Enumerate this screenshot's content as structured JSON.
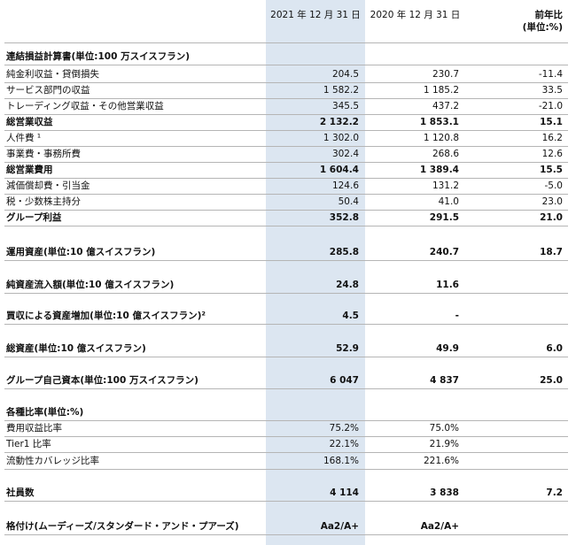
{
  "table": {
    "header": [
      "2021 年 12 月 31 日",
      "2020 年 12 月 31 日",
      "前年比"
    ],
    "header_unit": "(単位:%)",
    "rows": [
      {
        "label": "連結損益計算書(単位:100 万スイスフラン)",
        "bold": true
      },
      {
        "label": "純金利収益・貸倒損失",
        "cells": [
          "204.5",
          "230.7",
          "-11.4"
        ]
      },
      {
        "label": "サービス部門の収益",
        "cells": [
          "1 582.2",
          "1 185.2",
          "33.5"
        ]
      },
      {
        "label": "トレーディング収益・その他営業収益",
        "cells": [
          "345.5",
          "437.2",
          "-21.0"
        ]
      },
      {
        "label": "総営業収益",
        "bold": true,
        "cells": [
          "2 132.2",
          "1 853.1",
          "15.1"
        ]
      },
      {
        "label": "人件費 ¹",
        "cells": [
          "1 302.0",
          "1 120.8",
          "16.2"
        ]
      },
      {
        "label": "事業費・事務所費",
        "cells": [
          "302.4",
          "268.6",
          "12.6"
        ]
      },
      {
        "label": "総営業費用",
        "bold": true,
        "cells": [
          "1 604.4",
          "1 389.4",
          "15.5"
        ]
      },
      {
        "label": "減価償却費・引当金",
        "cells": [
          "124.6",
          "131.2",
          "-5.0"
        ]
      },
      {
        "label": "税・少数株主持分",
        "cells": [
          "50.4",
          "41.0",
          "23.0"
        ]
      },
      {
        "label": "グループ利益",
        "bold": true,
        "cells": [
          "352.8",
          "291.5",
          "21.0"
        ]
      },
      {
        "label": "運用資産(単位:10 億スイスフラン)",
        "bold": true,
        "cells": [
          "285.8",
          "240.7",
          "18.7"
        ]
      },
      {
        "label": "純資産流入額(単位:10 億スイスフラン)",
        "bold": true,
        "cells": [
          "24.8",
          "11.6"
        ]
      },
      {
        "label": "買収による資産増加(単位:10 億スイスフラン)²",
        "bold": true,
        "cells": [
          "4.5",
          "-"
        ]
      },
      {
        "label": "総資産(単位:10 億スイスフラン)",
        "bold": true,
        "cells": [
          "52.9",
          "49.9",
          "6.0"
        ]
      },
      {
        "label": "グループ自己資本(単位:100 万スイスフラン)",
        "bold": true,
        "cells": [
          "6 047",
          "4 837",
          "25.0"
        ]
      },
      {
        "label": "各種比率(単位:%)",
        "bold": true
      },
      {
        "label": "費用収益比率",
        "cells": [
          "75.2%",
          "75.0%"
        ]
      },
      {
        "label": "Tier1 比率",
        "cells": [
          "22.1%",
          "21.9%"
        ]
      },
      {
        "label": "流動性カバレッジ比率",
        "cells": [
          "168.1%",
          "221.6%"
        ]
      },
      {
        "label": "社員数",
        "bold": true,
        "cells": [
          "4 114",
          "3 838",
          "7.2"
        ]
      },
      {
        "label": "格付け(ムーディーズ/スタンダード・アンド・プアーズ)",
        "bold": true,
        "cells": [
          "Aa2/A+",
          "Aa2/A+"
        ]
      }
    ]
  }
}
